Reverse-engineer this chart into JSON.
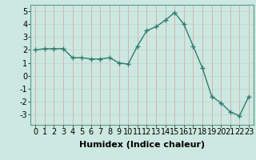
{
  "x": [
    0,
    1,
    2,
    3,
    4,
    5,
    6,
    7,
    8,
    9,
    10,
    11,
    12,
    13,
    14,
    15,
    16,
    17,
    18,
    19,
    20,
    21,
    22,
    23
  ],
  "y": [
    2.0,
    2.1,
    2.1,
    2.1,
    1.4,
    1.4,
    1.3,
    1.3,
    1.4,
    1.0,
    0.9,
    2.3,
    3.5,
    3.8,
    4.3,
    4.9,
    4.0,
    2.3,
    0.6,
    -1.6,
    -2.1,
    -2.8,
    -3.1,
    -1.6
  ],
  "xlabel": "Humidex (Indice chaleur)",
  "xlim": [
    -0.5,
    23.5
  ],
  "ylim": [
    -3.8,
    5.5
  ],
  "yticks": [
    -3,
    -2,
    -1,
    0,
    1,
    2,
    3,
    4,
    5
  ],
  "xticks": [
    0,
    1,
    2,
    3,
    4,
    5,
    6,
    7,
    8,
    9,
    10,
    11,
    12,
    13,
    14,
    15,
    16,
    17,
    18,
    19,
    20,
    21,
    22,
    23
  ],
  "line_color": "#2e7d6e",
  "marker": "+",
  "bg_color": "#cce8e0",
  "grid_color_v": "#d4a0a0",
  "grid_color_h": "#b8d4cc",
  "xlabel_fontsize": 8,
  "tick_fontsize": 7,
  "figwidth": 3.2,
  "figheight": 2.0,
  "dpi": 100
}
